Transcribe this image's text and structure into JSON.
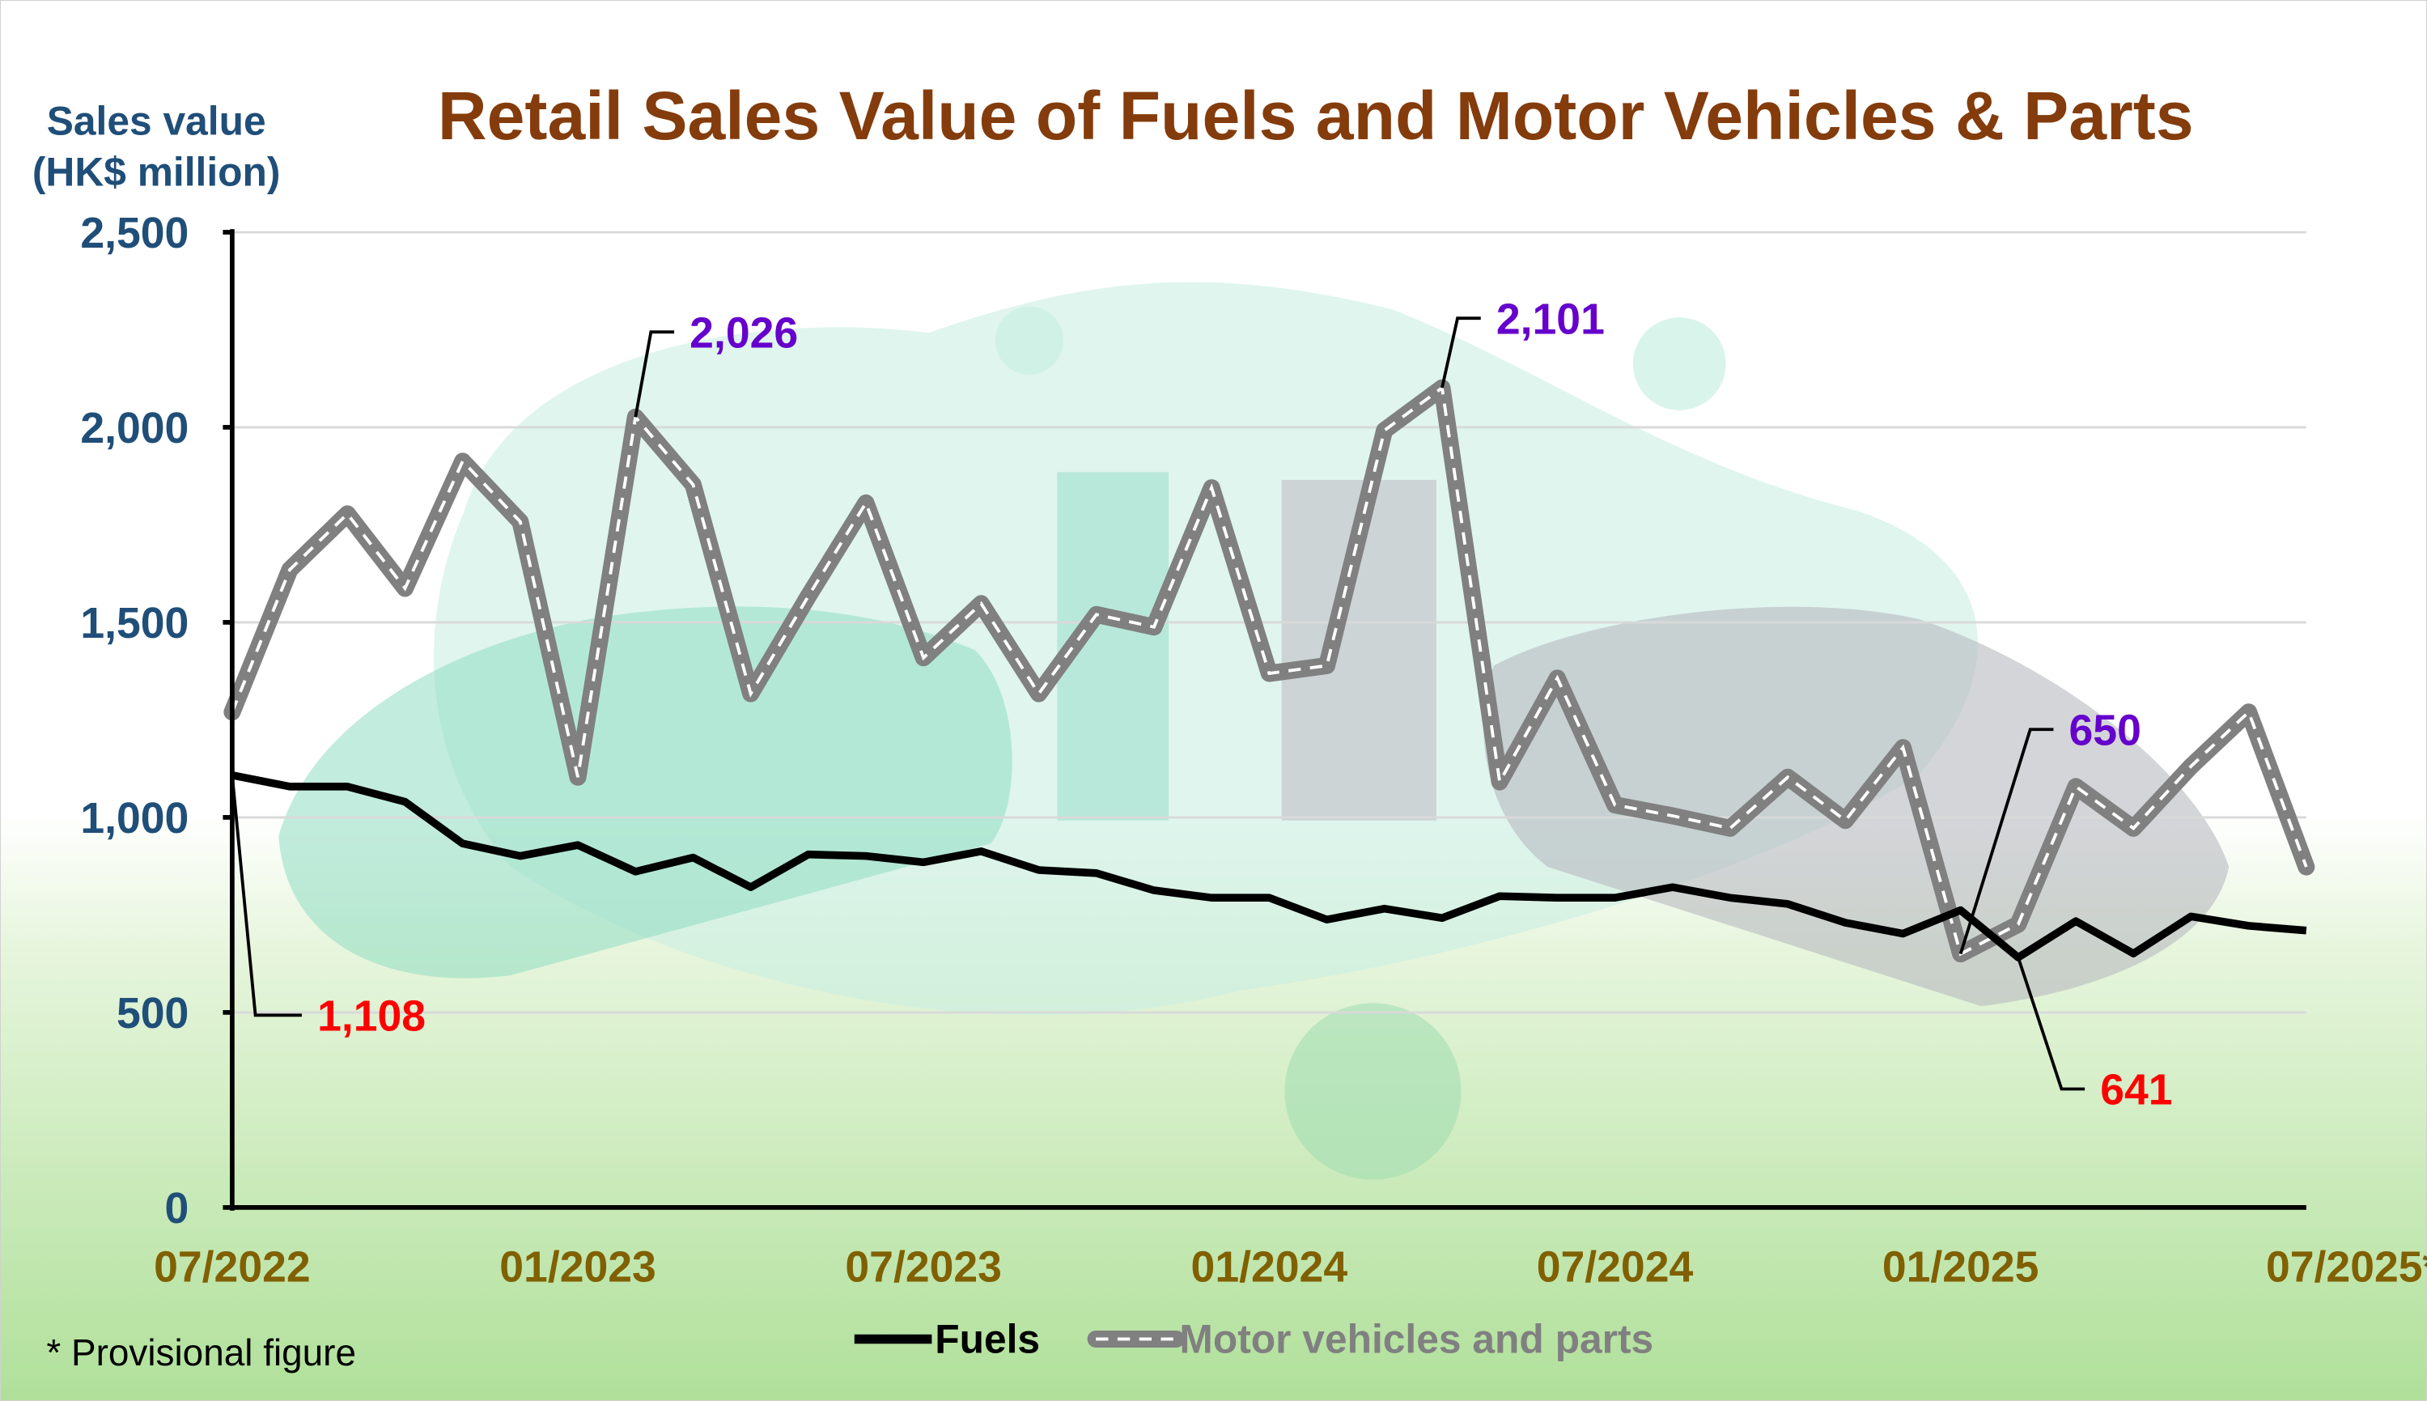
{
  "chart_data": {
    "type": "line",
    "title": "Retail Sales Value of Fuels and Motor Vehicles & Parts",
    "ylabel": [
      "Sales value",
      "(HK$ million)"
    ],
    "xlabel": "",
    "ylim": [
      0,
      2500
    ],
    "yticks": [
      "0",
      "500",
      "1,000",
      "1,500",
      "2,000",
      "2,500"
    ],
    "ytick_values": [
      0,
      500,
      1000,
      1500,
      2000,
      2500
    ],
    "grid": true,
    "x": [
      "07/2022",
      "08/2022",
      "09/2022",
      "10/2022",
      "11/2022",
      "12/2022",
      "01/2023",
      "02/2023",
      "03/2023",
      "04/2023",
      "05/2023",
      "06/2023",
      "07/2023",
      "08/2023",
      "09/2023",
      "10/2023",
      "11/2023",
      "12/2023",
      "01/2024",
      "02/2024",
      "03/2024",
      "04/2024",
      "05/2024",
      "06/2024",
      "07/2024",
      "08/2024",
      "09/2024",
      "10/2024",
      "11/2024",
      "12/2024",
      "01/2025",
      "02/2025",
      "03/2025",
      "04/2025",
      "05/2025",
      "06/2025",
      "07/2025"
    ],
    "xticks": [
      "07/2022",
      "01/2023",
      "07/2023",
      "01/2024",
      "07/2024",
      "01/2025",
      "07/2025*"
    ],
    "xtick_indices": [
      0,
      6,
      12,
      18,
      24,
      30,
      36
    ],
    "series": [
      {
        "name": "Fuels",
        "color": "#000000",
        "values": [
          1108,
          1079,
          1079,
          1040,
          933,
          901,
          929,
          861,
          897,
          821,
          905,
          901,
          885,
          913,
          865,
          857,
          813,
          794,
          794,
          738,
          766,
          742,
          798,
          794,
          794,
          821,
          794,
          778,
          730,
          702,
          762,
          641,
          734,
          651,
          746,
          722,
          710
        ]
      },
      {
        "name": "Motor vehicles and parts",
        "color": "#808080",
        "values": [
          1270,
          1635,
          1778,
          1587,
          1913,
          1758,
          1103,
          2026,
          1853,
          1317,
          1567,
          1806,
          1409,
          1548,
          1317,
          1520,
          1488,
          1845,
          1369,
          1389,
          1992,
          2101,
          1091,
          1357,
          1032,
          1004,
          972,
          1103,
          992,
          1179,
          650,
          726,
          1079,
          972,
          1131,
          1270,
          873
        ]
      }
    ],
    "annotations": [
      {
        "series": 0,
        "index": 0,
        "text": "1,108",
        "color": "#ff0000"
      },
      {
        "series": 1,
        "index": 7,
        "text": "2,026",
        "color": "#6600cc"
      },
      {
        "series": 1,
        "index": 21,
        "text": "2,101",
        "color": "#6600cc"
      },
      {
        "series": 1,
        "index": 30,
        "text": "650",
        "color": "#6600cc"
      },
      {
        "series": 0,
        "index": 31,
        "text": "641",
        "color": "#ff0000"
      }
    ],
    "legend": "bottom",
    "footnote": "* Provisional figure",
    "colors": {
      "title": "#843c0c",
      "axis_labels": "#1f4e79",
      "xtick_labels": "#806000",
      "legend_motor_text": "#808080"
    }
  }
}
